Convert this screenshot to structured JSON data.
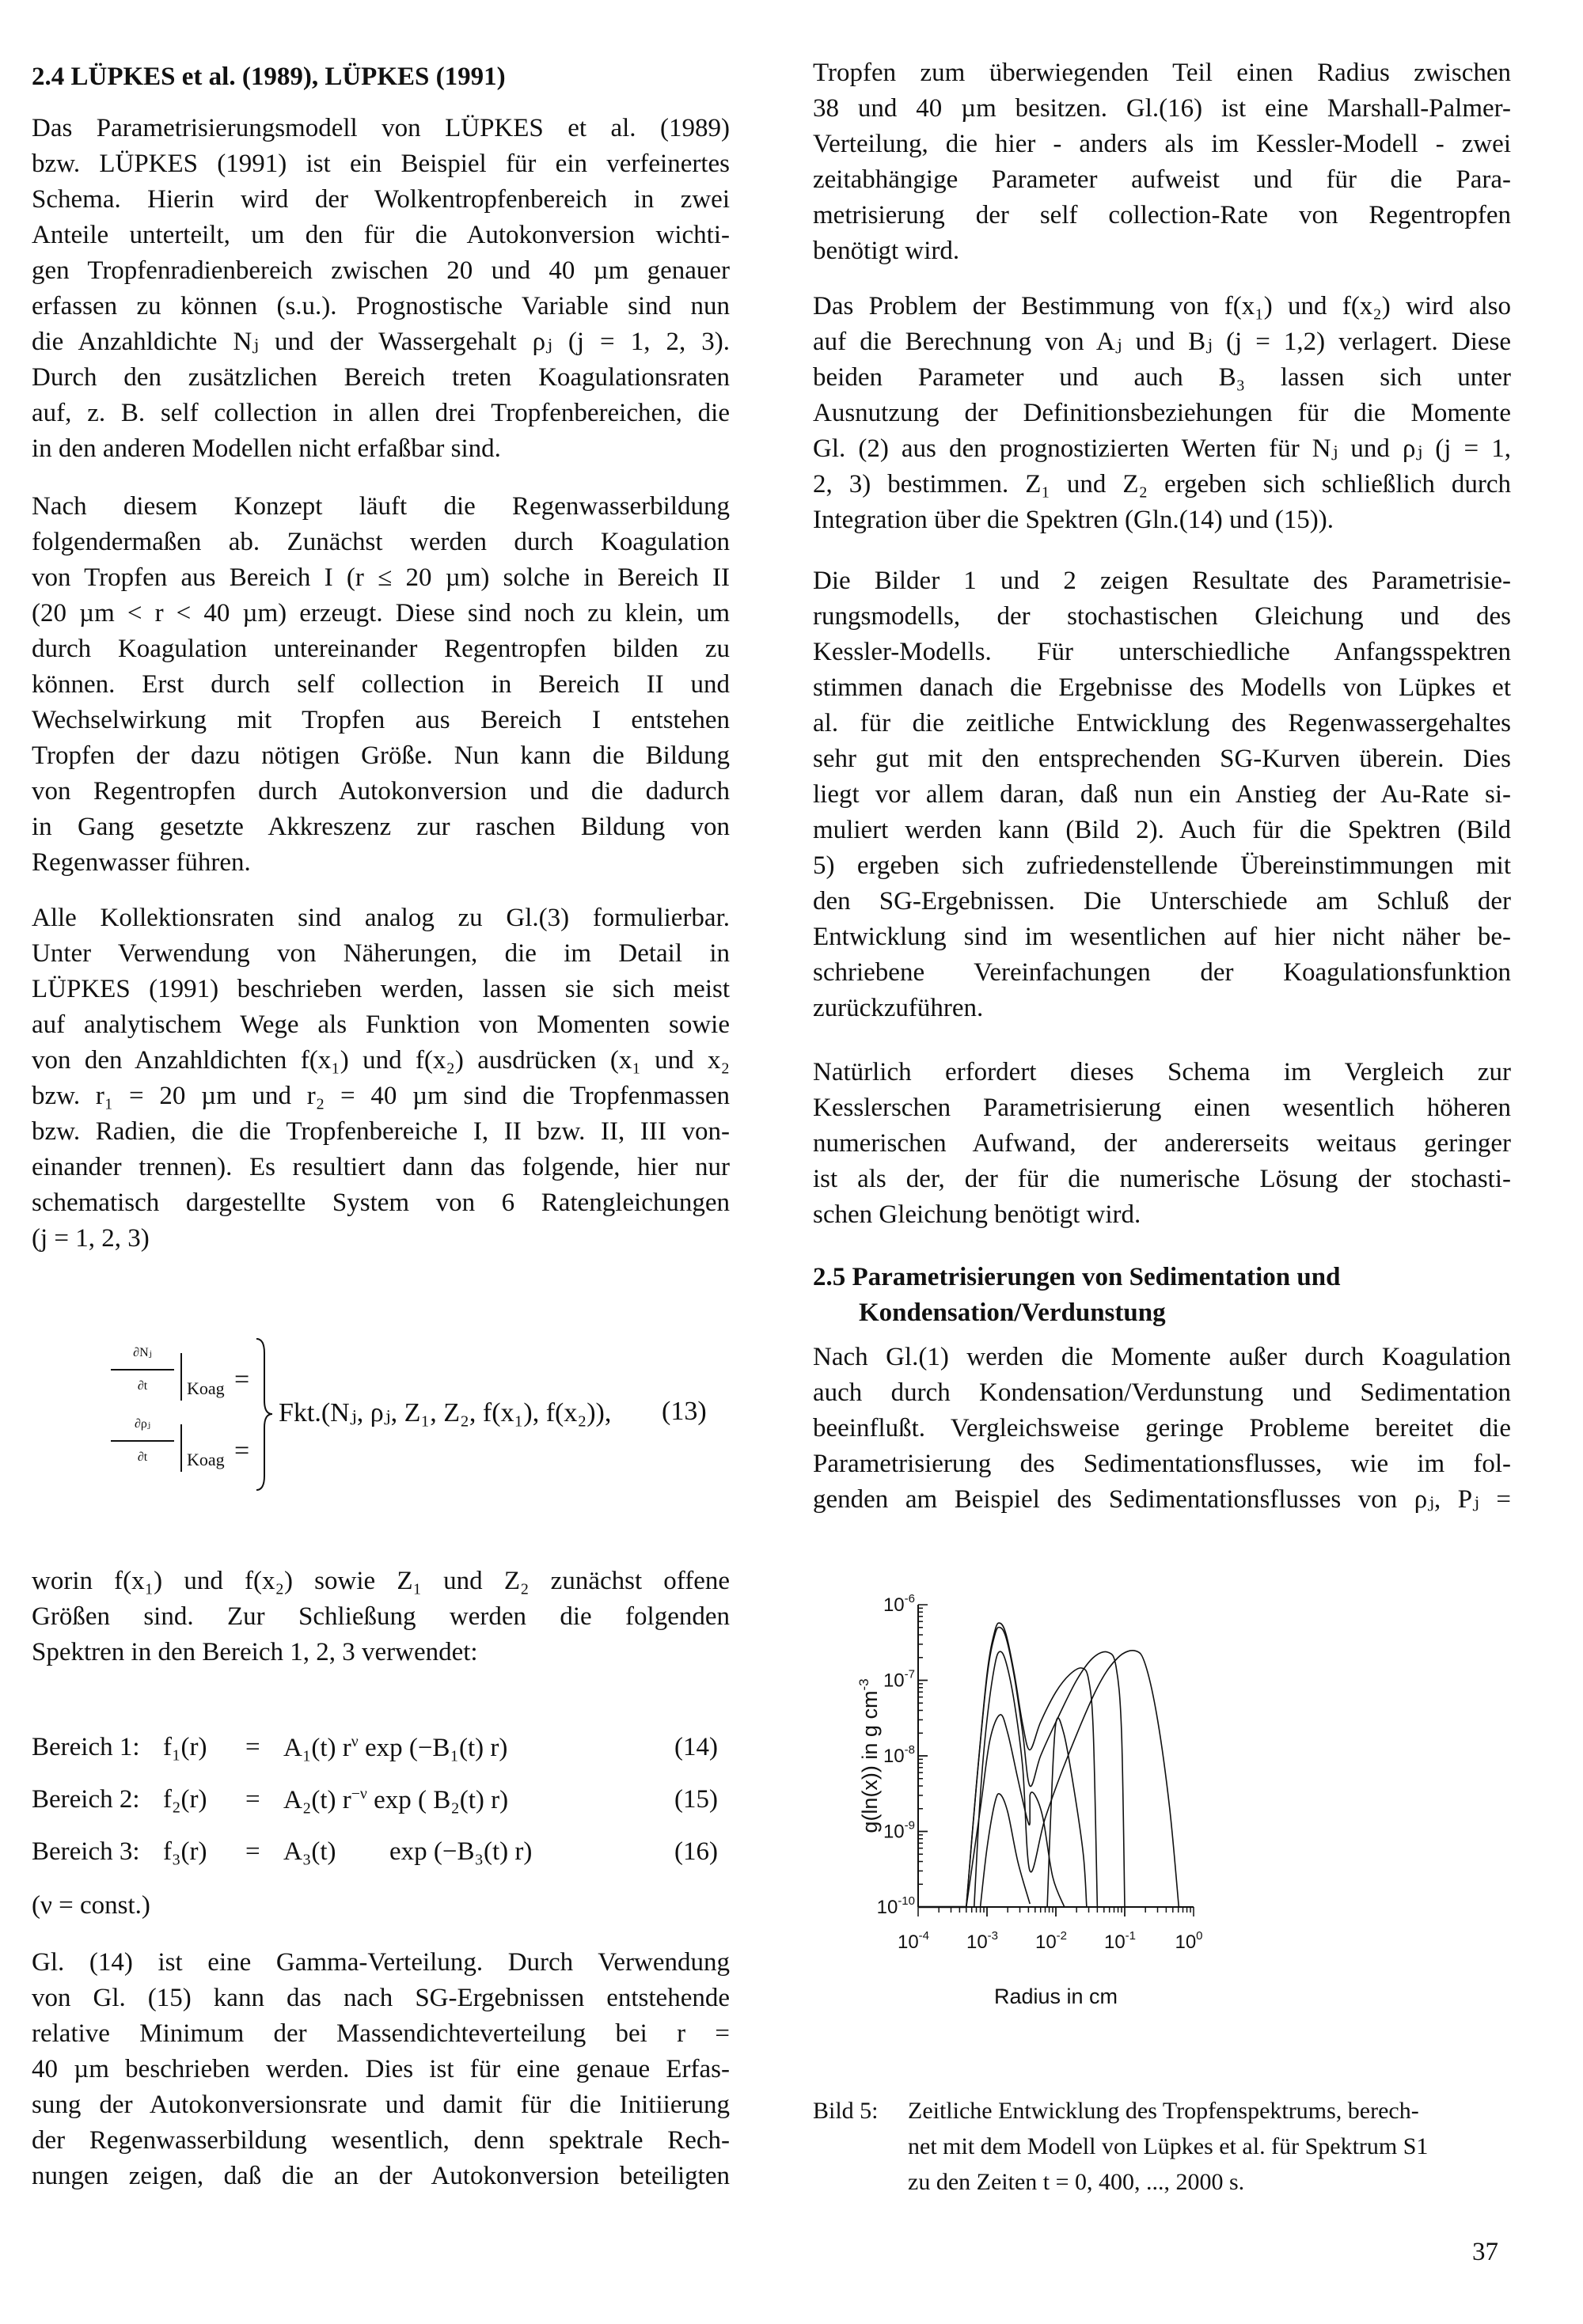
{
  "left": {
    "heading": "2.4 LÜPKES et al. (1989), LÜPKES (1991)",
    "p1": [
      "Das Parametrisierungsmodell von LÜPKES et al. (1989)",
      "bzw. LÜPKES (1991) ist ein Beispiel für ein verfeinertes",
      "Schema. Hierin wird der Wolkentropfenbereich in zwei",
      "Anteile unterteilt, um den für die Autokonversion wichti-",
      "gen Tropfenradienbereich zwischen 20 und 40 µm genauer",
      "erfassen zu können (s.u.). Prognostische Variable sind nun",
      "die Anzahldichte Nⱼ und der Wassergehalt ρⱼ (j = 1, 2, 3).",
      "Durch den zusätzlichen Bereich treten Koagulationsraten",
      "auf, z. B. self collection in allen drei Tropfenbereichen, die",
      "in den anderen Modellen nicht erfaßbar sind."
    ],
    "p2": [
      "Nach diesem Konzept läuft die Regenwasserbildung",
      "folgendermaßen ab. Zunächst werden durch Koagulation",
      "von Tropfen aus Bereich I (r ≤ 20 µm) solche in Bereich II",
      "(20 µm < r < 40 µm) erzeugt. Diese sind noch zu klein, um",
      "durch Koagulation untereinander Regentropfen bilden zu",
      "können. Erst durch self collection in Bereich II und",
      "Wechselwirkung mit Tropfen aus Bereich I entstehen",
      "Tropfen der dazu nötigen Größe. Nun kann die Bildung",
      "von Regentropfen durch Autokonversion und die dadurch",
      "in Gang gesetzte Akkreszenz zur raschen Bildung von",
      "Regenwasser führen."
    ],
    "p3": [
      "Alle Kollektionsraten sind analog zu Gl.(3) formulierbar.",
      "Unter Verwendung von Näherungen, die im Detail in",
      "LÜPKES (1991) beschrieben werden, lassen sie sich meist",
      "auf analytischem Wege als Funktion von Momenten sowie",
      "von den Anzahldichten f(x₁) und f(x₂) ausdrücken (x₁ und x₂",
      "bzw. r₁ = 20 µm und r₂ = 40 µm sind die Tropfenmassen",
      "bzw. Radien, die die Tropfenbereiche I, II bzw. II, III von-",
      "einander trennen). Es resultiert dann das folgende, hier nur",
      "schematisch dargestellte System von 6 Ratengleichungen",
      "(j = 1, 2, 3)"
    ],
    "eq13": {
      "num1": "∂Nⱼ",
      "num2": "∂ρⱼ",
      "den": "∂t",
      "sub": "Koag",
      "eq": "=",
      "rhs": "Fkt.(Nⱼ, ρⱼ, Z₁, Z₂, f(x₁), f(x₂)),",
      "number": "(13)"
    },
    "p4": [
      "worin f(x₁) und f(x₂) sowie Z₁ und Z₂ zunächst offene",
      "Größen sind. Zur Schließung werden die folgenden",
      "Spektren in den Bereich 1, 2, 3 verwendet:"
    ],
    "bereiche": [
      {
        "label": "Bereich 1:",
        "lhs": "f₁(r)",
        "eq": "=",
        "a": "A₁(t) r",
        "sup": "ν",
        "b": " exp (−B₁(t) r)",
        "number": "(14)"
      },
      {
        "label": "Bereich 2:",
        "lhs": "f₂(r)",
        "eq": "=",
        "a": "A₂(t) r",
        "sup": "−ν",
        "b": " exp ( B₂(t) r)",
        "number": "(15)"
      },
      {
        "label": "Bereich 3:",
        "lhs": "f₃(r)",
        "eq": "=",
        "a": "A₃(t)",
        "sup": "",
        "b": "exp (−B₃(t) r)",
        "number": "(16)"
      }
    ],
    "nu_const": "(ν = const.)",
    "p5": [
      "Gl. (14) ist eine Gamma-Verteilung. Durch Verwendung",
      "von Gl. (15) kann das nach SG-Ergebnissen entstehende",
      "relative Minimum der Massendichteverteilung bei r =",
      "40 µm beschrieben werden. Dies ist für eine genaue Erfas-",
      "sung der Autokonversionsrate und damit für die Initiierung",
      "der Regenwasserbildung wesentlich, denn spektrale Rech-",
      "nungen zeigen, daß die an der Autokonversion beteiligten"
    ]
  },
  "right": {
    "r1": [
      "Tropfen zum überwiegenden Teil einen Radius zwischen",
      "38 und 40 µm besitzen. Gl.(16) ist eine Marshall-Palmer-",
      "Verteilung, die hier - anders als im Kessler-Modell - zwei",
      "zeitabhängige Parameter aufweist und für die Para-",
      "metrisierung der self collection-Rate von Regentropfen",
      "benötigt wird."
    ],
    "r2": [
      "Das Problem der Bestimmung von f(x₁) und f(x₂) wird also",
      "auf die Berechnung von Aⱼ und Bⱼ (j = 1,2) verlagert. Diese",
      "beiden Parameter und auch B₃ lassen sich unter",
      "Ausnutzung der Definitionsbeziehungen für die Momente",
      "Gl. (2) aus den prognostizierten Werten für Nⱼ und ρⱼ (j = 1,",
      "2, 3) bestimmen. Z₁ und Z₂ ergeben sich schließlich durch",
      "Integration über die Spektren (Gln.(14) und (15))."
    ],
    "r3": [
      "Die Bilder 1 und 2 zeigen Resultate des Parametrisie-",
      "rungsmodells, der stochastischen Gleichung und des",
      "Kessler-Modells. Für unterschiedliche Anfangsspektren",
      "stimmen danach die Ergebnisse des Modells von Lüpkes et",
      "al. für die zeitliche Entwicklung des Regenwassergehaltes",
      "sehr gut mit den entsprechenden SG-Kurven überein. Dies",
      "liegt vor allem daran, daß nun ein Anstieg der Au-Rate si-",
      "muliert werden kann (Bild 2). Auch für die Spektren (Bild",
      "5) ergeben sich zufriedenstellende Übereinstimmungen mit",
      "den SG-Ergebnissen. Die Unterschiede am Schluß der",
      "Entwicklung sind im wesentlichen auf hier nicht näher be-",
      "schriebene Vereinfachungen der Koagulationsfunktion",
      "zurückzuführen."
    ],
    "r4": [
      "Natürlich erfordert dieses Schema im Vergleich zur",
      "Kesslerschen Parametrisierung einen wesentlich höheren",
      "numerischen Aufwand, der andererseits weitaus geringer",
      "ist als der, der für die numerische Lösung der stochasti-",
      "schen Gleichung benötigt wird."
    ],
    "heading": [
      "2.5 Parametrisierungen von Sedimentation und",
      "Kondensation/Verdunstung"
    ],
    "r5": [
      "Nach Gl.(1) werden die Momente außer durch Koagulation",
      "auch durch Kondensation/Verdunstung und Sedimentation",
      "beeinflußt. Vergleichsweise geringe Probleme bereitet die",
      "Parametrisierung des Sedimentationsflusses, wie im fol-",
      "genden am Beispiel des Sedimentationsflusses von ρⱼ, Pⱼ ="
    ],
    "caption": {
      "label": "Bild 5:",
      "lines": [
        "Zeitliche Entwicklung des Tropfenspektrums, berech-",
        "net mit dem Modell von Lüpkes et al. für Spektrum S1",
        "zu den Zeiten t = 0, 400, ..., 2000 s."
      ]
    }
  },
  "page_number": "37",
  "chart_data": {
    "type": "line",
    "xlabel": "Radius in cm",
    "ylabel": "g(ln(x)) in g cm",
    "ylabel_sup": "-3",
    "xscale": "log",
    "yscale": "log",
    "xlim": [
      0.0001,
      1
    ],
    "ylim": [
      1e-10,
      1e-06
    ],
    "x_ticks": [
      {
        "base": "10",
        "exp": "-4"
      },
      {
        "base": "10",
        "exp": "-3"
      },
      {
        "base": "10",
        "exp": "-2"
      },
      {
        "base": "10",
        "exp": "-1"
      },
      {
        "base": "10",
        "exp": "0"
      }
    ],
    "y_ticks": [
      {
        "base": "10",
        "exp": "-6"
      },
      {
        "base": "10",
        "exp": "-7"
      },
      {
        "base": "10",
        "exp": "-8"
      },
      {
        "base": "10",
        "exp": "-9"
      },
      {
        "base": "10",
        "exp": "-10"
      }
    ],
    "grid": false,
    "color": "#111111",
    "series": [
      {
        "points": [
          [
            0.0005,
            1e-10
          ],
          [
            0.0007,
            4e-09
          ],
          [
            0.001,
            1.2e-07
          ],
          [
            0.0013,
            4.5e-07
          ],
          [
            0.00155,
            5.7e-07
          ],
          [
            0.0019,
            4e-07
          ],
          [
            0.0025,
            1.2e-07
          ],
          [
            0.0033,
            2.6e-08
          ],
          [
            0.0042,
            1.2e-08
          ],
          [
            0.006,
            2.8e-08
          ],
          [
            0.01,
            7e-08
          ],
          [
            0.016,
            1.2e-07
          ],
          [
            0.024,
            1.45e-07
          ],
          [
            0.03,
            1e-07
          ],
          [
            0.035,
            2e-08
          ],
          [
            0.04,
            1e-10
          ]
        ]
      },
      {
        "points": [
          [
            0.0005,
            1e-10
          ],
          [
            0.0007,
            4e-09
          ],
          [
            0.001,
            1.1e-07
          ],
          [
            0.0013,
            4e-07
          ],
          [
            0.00155,
            5e-07
          ],
          [
            0.0019,
            3.6e-07
          ],
          [
            0.0025,
            1.1e-07
          ],
          [
            0.0033,
            2e-08
          ],
          [
            0.0042,
            4e-09
          ],
          [
            0.006,
            1e-08
          ],
          [
            0.01,
            2.8e-08
          ],
          [
            0.02,
            1e-07
          ],
          [
            0.035,
            2e-07
          ],
          [
            0.057,
            2.35e-07
          ],
          [
            0.075,
            1.5e-07
          ],
          [
            0.09,
            2e-08
          ],
          [
            0.1,
            1e-10
          ]
        ]
      },
      {
        "points": [
          [
            0.00065,
            1e-10
          ],
          [
            0.0008,
            3e-09
          ],
          [
            0.001,
            3e-08
          ],
          [
            0.0013,
            1.6e-07
          ],
          [
            0.00155,
            2.4e-07
          ],
          [
            0.0019,
            1.7e-07
          ],
          [
            0.0025,
            5e-08
          ],
          [
            0.0033,
            7e-09
          ],
          [
            0.0042,
            3e-10
          ],
          [
            0.007,
            1.5e-09
          ],
          [
            0.015,
            1e-08
          ],
          [
            0.04,
            8e-08
          ],
          [
            0.08,
            2e-07
          ],
          [
            0.143,
            2.45e-07
          ],
          [
            0.2,
            1.6e-07
          ],
          [
            0.3,
            3e-08
          ],
          [
            0.45,
            2e-09
          ],
          [
            0.61,
            1e-10
          ]
        ]
      },
      {
        "points": [
          [
            0.0005,
            1e-10
          ],
          [
            0.0008,
            2e-09
          ],
          [
            0.0011,
            1.6e-08
          ],
          [
            0.00155,
            3.5e-08
          ],
          [
            0.002,
            2e-08
          ],
          [
            0.0028,
            5e-09
          ],
          [
            0.0038,
            1.5e-09
          ],
          [
            0.0042,
            1.3e-09
          ],
          [
            0.0042,
            3e-09
          ],
          [
            0.005,
            3e-09
          ],
          [
            0.0065,
            1.5e-09
          ],
          [
            0.009,
            2.5e-10
          ],
          [
            0.0133,
            1e-10
          ]
        ]
      },
      {
        "points": [
          [
            0.0008,
            1e-10
          ],
          [
            0.001,
            6e-10
          ],
          [
            0.0013,
            2.4e-09
          ],
          [
            0.00155,
            3.1e-09
          ],
          [
            0.002,
            1.8e-09
          ],
          [
            0.0028,
            4e-10
          ],
          [
            0.0042,
            1.1e-10
          ]
        ]
      },
      {
        "points": [
          [
            0.0075,
            1e-10
          ],
          [
            0.0085,
            2e-09
          ],
          [
            0.01,
            2.7e-08
          ],
          [
            0.013,
            2e-08
          ],
          [
            0.018,
            4e-09
          ],
          [
            0.025,
            5e-10
          ],
          [
            0.028,
            1e-10
          ]
        ]
      }
    ]
  }
}
